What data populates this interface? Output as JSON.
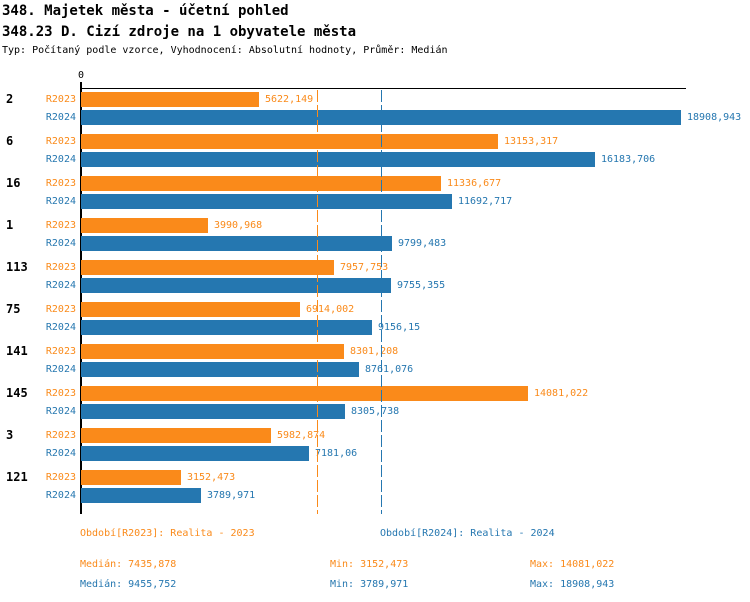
{
  "header": {
    "title": "348. Majetek města - účetní pohled",
    "subtitle": "348.23 D. Cizí zdroje na 1 obyvatele města",
    "meta": "Typ: Počítaný podle vzorce, Vyhodnocení: Absolutní hodnoty, Průměr: Medián"
  },
  "colors": {
    "r2023": "#FA8A1A",
    "r2024": "#2577B0",
    "axis": "#000000"
  },
  "chart_data": {
    "type": "bar",
    "orientation": "horizontal",
    "title": "348.23 D. Cizí zdroje na 1 obyvatele města",
    "xlabel": "",
    "ylabel": "",
    "axis": {
      "origin_label": "0",
      "xlim": [
        0,
        18908.943
      ],
      "grid": false
    },
    "categories": [
      "2",
      "6",
      "16",
      "1",
      "113",
      "75",
      "141",
      "145",
      "3",
      "121"
    ],
    "series": [
      {
        "name": "R2023",
        "legend": "Období[R2023]: Realita - 2023",
        "color": "#FA8A1A",
        "values": [
          5622.149,
          13153.317,
          11336.677,
          3990.968,
          7957.753,
          6914.002,
          8301.208,
          14081.022,
          5982.874,
          3152.473
        ],
        "value_labels": [
          "5622,149",
          "13153,317",
          "11336,677",
          "3990,968",
          "7957,753",
          "6914,002",
          "8301,208",
          "14081,022",
          "5982,874",
          "3152,473"
        ],
        "stats": {
          "median": 7435.878,
          "min": 3152.473,
          "max": 14081.022
        }
      },
      {
        "name": "R2024",
        "legend": "Období[R2024]: Realita - 2024",
        "color": "#2577B0",
        "values": [
          18908.943,
          16183.706,
          11692.717,
          9799.483,
          9755.355,
          9156.15,
          8761.076,
          8305.738,
          7181.06,
          3789.971
        ],
        "value_labels": [
          "18908,943",
          "16183,706",
          "11692,717",
          "9799,483",
          "9755,355",
          "9156,15",
          "8761,076",
          "8305,738",
          "7181,06",
          "3789,971"
        ],
        "stats": {
          "median": 9455.752,
          "min": 3789.971,
          "max": 18908.943
        }
      }
    ],
    "reference_lines": [
      {
        "name": "median-r2023",
        "value": 7435.878,
        "color": "#FA8A1A"
      },
      {
        "name": "median-r2024",
        "value": 9455.752,
        "color": "#2577B0"
      }
    ],
    "legend_position": "bottom"
  },
  "footer": {
    "legend_r2023": "Období[R2023]: Realita - 2023",
    "legend_r2024": "Období[R2024]: Realita - 2024",
    "stats": {
      "r2023": {
        "median_label": "Medián: 7435,878",
        "min_label": "Min: 3152,473",
        "max_label": "Max: 14081,022"
      },
      "r2024": {
        "median_label": "Medián: 9455,752",
        "min_label": "Min: 3789,971",
        "max_label": "Max: 18908,943"
      }
    }
  }
}
